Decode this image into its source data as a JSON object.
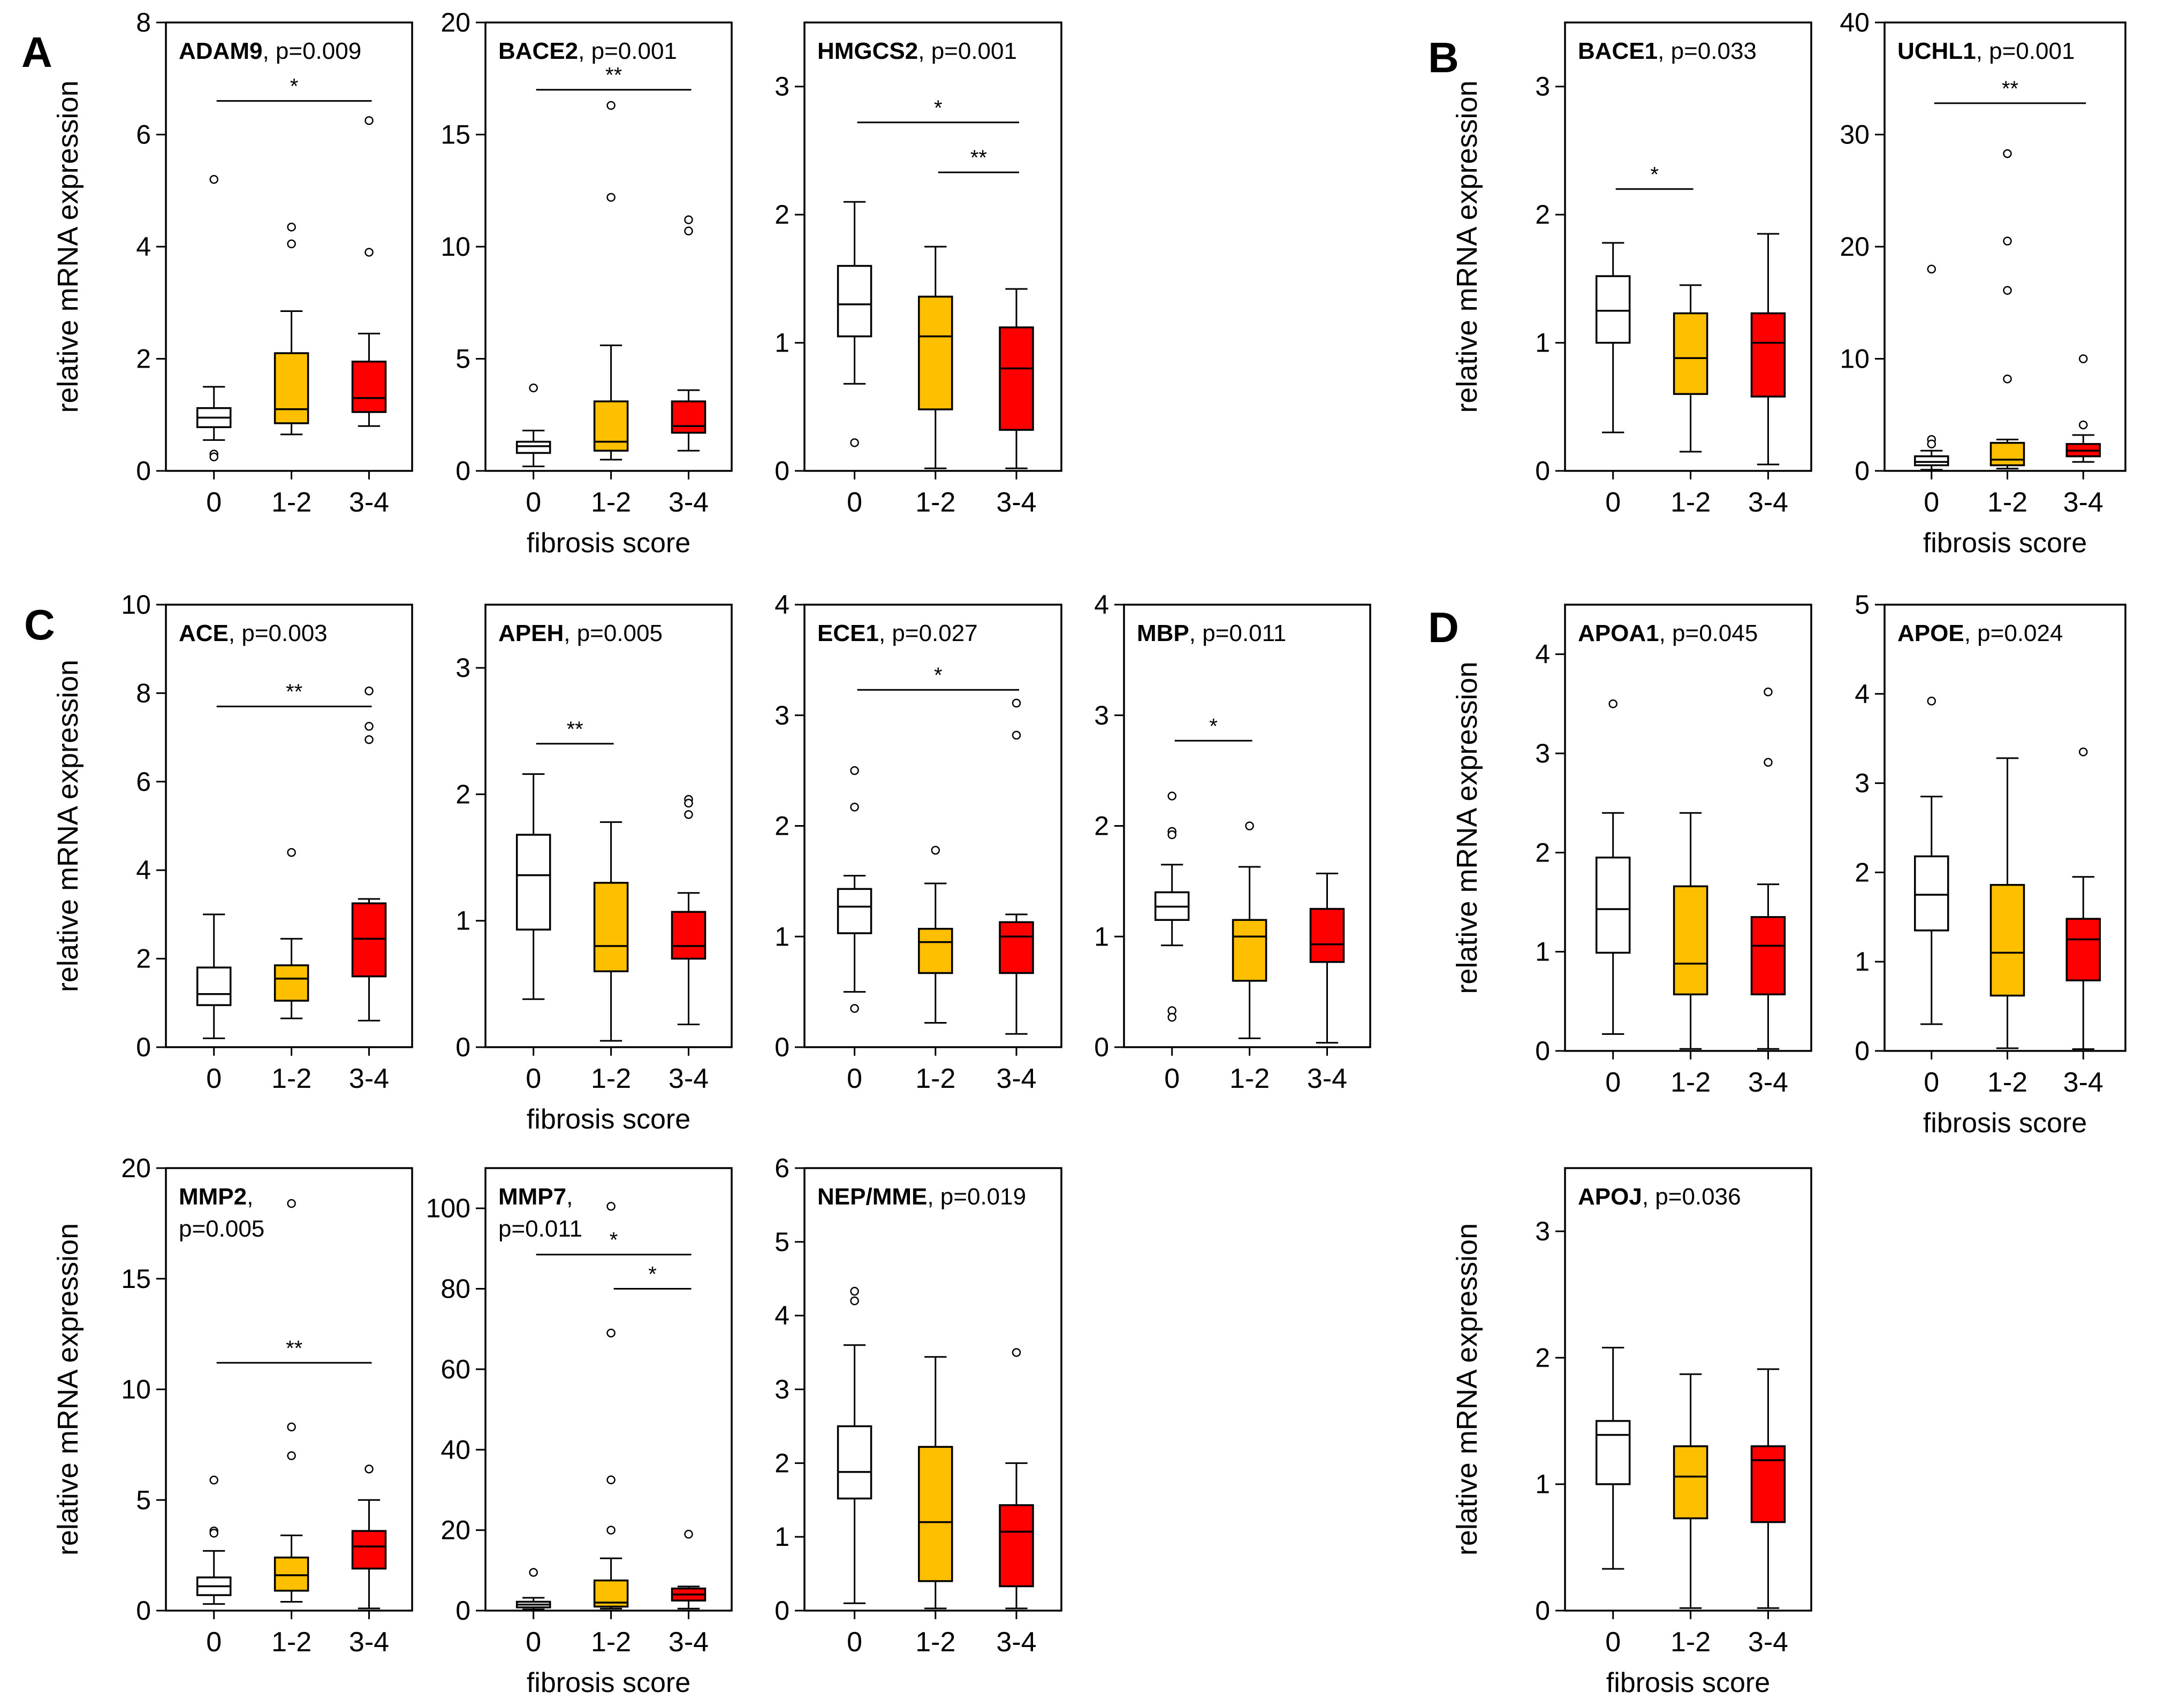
{
  "colors": {
    "score_0": "#ffffff",
    "score_1_2": "#fdbf00",
    "score_3_4": "#ff0000"
  },
  "x_categories": [
    "0",
    "1-2",
    "3-4"
  ],
  "y_axis_label": "relative mRNA expression",
  "x_axis_label": "fibrosis score",
  "panel_labels": [
    "A",
    "B",
    "C",
    "D"
  ],
  "chart_data": [
    {
      "id": "ADAM9",
      "type": "boxplot",
      "panel": "A",
      "gene": "ADAM9",
      "pvalue": ", p=0.009",
      "title_line2": "",
      "ylim": [
        0,
        8
      ],
      "yticks": [
        "0",
        "2",
        "4",
        "6",
        "8"
      ],
      "show_ylabel": true,
      "show_xlabel": false,
      "boxes": [
        {
          "category": "0",
          "whisker_low": 0.55,
          "q1": 0.78,
          "median": 0.95,
          "q3": 1.12,
          "whisker_high": 1.5,
          "outliers": [
            5.2,
            0.3,
            0.25
          ]
        },
        {
          "category": "1-2",
          "whisker_low": 0.65,
          "q1": 0.85,
          "median": 1.1,
          "q3": 2.1,
          "whisker_high": 2.85,
          "outliers": [
            4.35,
            4.05
          ]
        },
        {
          "category": "3-4",
          "whisker_low": 0.8,
          "q1": 1.05,
          "median": 1.3,
          "q3": 1.95,
          "whisker_high": 2.45,
          "outliers": [
            6.25,
            3.9
          ]
        }
      ],
      "brackets": [
        {
          "from": 0,
          "to": 2,
          "y": 6.6,
          "label": "*"
        }
      ]
    },
    {
      "id": "BACE2",
      "type": "boxplot",
      "panel": "A",
      "gene": "BACE2",
      "pvalue": ", p=0.001",
      "title_line2": "",
      "ylim": [
        0,
        20
      ],
      "yticks": [
        "0",
        "5",
        "10",
        "15",
        "20"
      ],
      "show_ylabel": false,
      "show_xlabel": true,
      "boxes": [
        {
          "category": "0",
          "whisker_low": 0.2,
          "q1": 0.8,
          "median": 1.1,
          "q3": 1.3,
          "whisker_high": 1.8,
          "outliers": [
            3.7
          ]
        },
        {
          "category": "1-2",
          "whisker_low": 0.5,
          "q1": 0.9,
          "median": 1.3,
          "q3": 3.1,
          "whisker_high": 5.6,
          "outliers": [
            16.3,
            12.2
          ]
        },
        {
          "category": "3-4",
          "whisker_low": 0.9,
          "q1": 1.7,
          "median": 2.0,
          "q3": 3.1,
          "whisker_high": 3.6,
          "outliers": [
            11.2,
            10.7
          ]
        }
      ],
      "brackets": [
        {
          "from": 0,
          "to": 2,
          "y": 17.0,
          "label": "**"
        }
      ]
    },
    {
      "id": "HMGCS2",
      "type": "boxplot",
      "panel": "A",
      "gene": "HMGCS2",
      "pvalue": ", p=0.001",
      "title_line2": "",
      "ylim": [
        0,
        3.5
      ],
      "yticks": [
        "0",
        "1",
        "2",
        "3"
      ],
      "show_ylabel": false,
      "show_xlabel": false,
      "boxes": [
        {
          "category": "0",
          "whisker_low": 0.68,
          "q1": 1.05,
          "median": 1.3,
          "q3": 1.6,
          "whisker_high": 2.1,
          "outliers": [
            0.22
          ]
        },
        {
          "category": "1-2",
          "whisker_low": 0.02,
          "q1": 0.48,
          "median": 1.05,
          "q3": 1.36,
          "whisker_high": 1.75,
          "outliers": []
        },
        {
          "category": "3-4",
          "whisker_low": 0.02,
          "q1": 0.32,
          "median": 0.8,
          "q3": 1.12,
          "whisker_high": 1.42,
          "outliers": []
        }
      ],
      "brackets": [
        {
          "from": 0,
          "to": 2,
          "y": 2.72,
          "label": "*"
        },
        {
          "from": 1,
          "to": 2,
          "y": 2.33,
          "label": "**"
        }
      ]
    },
    {
      "id": "BACE1",
      "type": "boxplot",
      "panel": "B",
      "gene": "BACE1",
      "pvalue": ", p=0.033",
      "title_line2": "",
      "ylim": [
        0,
        3.5
      ],
      "yticks": [
        "0",
        "1",
        "2",
        "3"
      ],
      "show_ylabel": true,
      "show_xlabel": false,
      "boxes": [
        {
          "category": "0",
          "whisker_low": 0.3,
          "q1": 1.0,
          "median": 1.25,
          "q3": 1.52,
          "whisker_high": 1.78,
          "outliers": []
        },
        {
          "category": "1-2",
          "whisker_low": 0.15,
          "q1": 0.6,
          "median": 0.88,
          "q3": 1.23,
          "whisker_high": 1.45,
          "outliers": []
        },
        {
          "category": "3-4",
          "whisker_low": 0.05,
          "q1": 0.58,
          "median": 1.0,
          "q3": 1.23,
          "whisker_high": 1.85,
          "outliers": []
        }
      ],
      "brackets": [
        {
          "from": 0,
          "to": 1,
          "y": 2.2,
          "label": "*"
        }
      ]
    },
    {
      "id": "UCHL1",
      "type": "boxplot",
      "panel": "B",
      "gene": "UCHL1",
      "pvalue": ", p=0.001",
      "title_line2": "",
      "ylim": [
        0,
        40
      ],
      "yticks": [
        "0",
        "10",
        "20",
        "30",
        "40"
      ],
      "show_ylabel": false,
      "show_xlabel": true,
      "boxes": [
        {
          "category": "0",
          "whisker_low": 0.1,
          "q1": 0.5,
          "median": 0.8,
          "q3": 1.3,
          "whisker_high": 1.8,
          "outliers": [
            18.0,
            2.8,
            2.4
          ]
        },
        {
          "category": "1-2",
          "whisker_low": 0.2,
          "q1": 0.5,
          "median": 1.0,
          "q3": 2.5,
          "whisker_high": 2.8,
          "outliers": [
            28.3,
            20.5,
            16.1,
            8.2
          ]
        },
        {
          "category": "3-4",
          "whisker_low": 0.8,
          "q1": 1.3,
          "median": 1.8,
          "q3": 2.4,
          "whisker_high": 3.2,
          "outliers": [
            10.0,
            4.1
          ]
        }
      ],
      "brackets": [
        {
          "from": 0,
          "to": 2,
          "y": 32.8,
          "label": "**"
        }
      ]
    },
    {
      "id": "ACE",
      "type": "boxplot",
      "panel": "C",
      "gene": "ACE",
      "pvalue": ", p=0.003",
      "title_line2": "",
      "ylim": [
        0,
        10
      ],
      "yticks": [
        "0",
        "2",
        "4",
        "6",
        "8",
        "10"
      ],
      "show_ylabel": true,
      "show_xlabel": false,
      "boxes": [
        {
          "category": "0",
          "whisker_low": 0.2,
          "q1": 0.95,
          "median": 1.2,
          "q3": 1.8,
          "whisker_high": 3.0,
          "outliers": []
        },
        {
          "category": "1-2",
          "whisker_low": 0.65,
          "q1": 1.05,
          "median": 1.55,
          "q3": 1.85,
          "whisker_high": 2.45,
          "outliers": [
            4.4
          ]
        },
        {
          "category": "3-4",
          "whisker_low": 0.6,
          "q1": 1.6,
          "median": 2.45,
          "q3": 3.25,
          "whisker_high": 3.35,
          "outliers": [
            8.05,
            7.25,
            6.95
          ]
        }
      ],
      "brackets": [
        {
          "from": 0,
          "to": 2,
          "y": 7.7,
          "label": "**"
        }
      ]
    },
    {
      "id": "APEH",
      "type": "boxplot",
      "panel": "C",
      "gene": "APEH",
      "pvalue": ", p=0.005",
      "title_line2": "",
      "ylim": [
        0,
        3.5
      ],
      "yticks": [
        "0",
        "1",
        "2",
        "3"
      ],
      "show_ylabel": false,
      "show_xlabel": true,
      "boxes": [
        {
          "category": "0",
          "whisker_low": 0.38,
          "q1": 0.93,
          "median": 1.36,
          "q3": 1.68,
          "whisker_high": 2.16,
          "outliers": []
        },
        {
          "category": "1-2",
          "whisker_low": 0.05,
          "q1": 0.6,
          "median": 0.8,
          "q3": 1.3,
          "whisker_high": 1.78,
          "outliers": []
        },
        {
          "category": "3-4",
          "whisker_low": 0.18,
          "q1": 0.7,
          "median": 0.8,
          "q3": 1.07,
          "whisker_high": 1.22,
          "outliers": [
            1.96,
            1.93,
            1.84
          ]
        }
      ],
      "brackets": [
        {
          "from": 0,
          "to": 1,
          "y": 2.4,
          "label": "**"
        }
      ]
    },
    {
      "id": "ECE1",
      "type": "boxplot",
      "panel": "C",
      "gene": "ECE1",
      "pvalue": ", p=0.027",
      "title_line2": "",
      "ylim": [
        0,
        4
      ],
      "yticks": [
        "0",
        "1",
        "2",
        "3",
        "4"
      ],
      "show_ylabel": false,
      "show_xlabel": false,
      "boxes": [
        {
          "category": "0",
          "whisker_low": 0.5,
          "q1": 1.03,
          "median": 1.27,
          "q3": 1.43,
          "whisker_high": 1.55,
          "outliers": [
            2.5,
            2.17,
            0.35
          ]
        },
        {
          "category": "1-2",
          "whisker_low": 0.22,
          "q1": 0.67,
          "median": 0.95,
          "q3": 1.07,
          "whisker_high": 1.48,
          "outliers": [
            1.78
          ]
        },
        {
          "category": "3-4",
          "whisker_low": 0.12,
          "q1": 0.67,
          "median": 1.0,
          "q3": 1.13,
          "whisker_high": 1.2,
          "outliers": [
            3.11,
            2.82
          ]
        }
      ],
      "brackets": [
        {
          "from": 0,
          "to": 2,
          "y": 3.23,
          "label": "*"
        }
      ]
    },
    {
      "id": "MBP",
      "type": "boxplot",
      "panel": "C",
      "gene": "MBP",
      "pvalue": ", p=0.011",
      "title_line2": "",
      "ylim": [
        0,
        4
      ],
      "yticks": [
        "0",
        "1",
        "2",
        "3",
        "4"
      ],
      "show_ylabel": false,
      "show_xlabel": false,
      "boxes": [
        {
          "category": "0",
          "whisker_low": 0.92,
          "q1": 1.15,
          "median": 1.27,
          "q3": 1.4,
          "whisker_high": 1.65,
          "outliers": [
            2.27,
            1.95,
            1.92,
            0.33,
            0.27
          ]
        },
        {
          "category": "1-2",
          "whisker_low": 0.08,
          "q1": 0.6,
          "median": 1.0,
          "q3": 1.15,
          "whisker_high": 1.63,
          "outliers": [
            2.0
          ]
        },
        {
          "category": "3-4",
          "whisker_low": 0.04,
          "q1": 0.77,
          "median": 0.93,
          "q3": 1.25,
          "whisker_high": 1.57,
          "outliers": []
        }
      ],
      "brackets": [
        {
          "from": 0,
          "to": 1,
          "y": 2.77,
          "label": "*"
        }
      ]
    },
    {
      "id": "APOA1",
      "type": "boxplot",
      "panel": "D",
      "gene": "APOA1",
      "pvalue": ", p=0.045",
      "title_line2": "",
      "ylim": [
        0,
        4.5
      ],
      "yticks": [
        "0",
        "1",
        "2",
        "3",
        "4"
      ],
      "show_ylabel": true,
      "show_xlabel": false,
      "boxes": [
        {
          "category": "0",
          "whisker_low": 0.17,
          "q1": 0.99,
          "median": 1.43,
          "q3": 1.95,
          "whisker_high": 2.4,
          "outliers": [
            3.5
          ]
        },
        {
          "category": "1-2",
          "whisker_low": 0.02,
          "q1": 0.57,
          "median": 0.88,
          "q3": 1.66,
          "whisker_high": 2.4,
          "outliers": []
        },
        {
          "category": "3-4",
          "whisker_low": 0.02,
          "q1": 0.57,
          "median": 1.06,
          "q3": 1.35,
          "whisker_high": 1.68,
          "outliers": [
            3.62,
            2.91
          ]
        }
      ],
      "brackets": []
    },
    {
      "id": "APOE",
      "type": "boxplot",
      "panel": "D",
      "gene": "APOE",
      "pvalue": ", p=0.024",
      "title_line2": "",
      "ylim": [
        0,
        5
      ],
      "yticks": [
        "0",
        "1",
        "2",
        "3",
        "4",
        "5"
      ],
      "show_ylabel": false,
      "show_xlabel": true,
      "boxes": [
        {
          "category": "0",
          "whisker_low": 0.3,
          "q1": 1.35,
          "median": 1.75,
          "q3": 2.18,
          "whisker_high": 2.85,
          "outliers": [
            3.92
          ]
        },
        {
          "category": "1-2",
          "whisker_low": 0.03,
          "q1": 0.62,
          "median": 1.1,
          "q3": 1.86,
          "whisker_high": 3.28,
          "outliers": []
        },
        {
          "category": "3-4",
          "whisker_low": 0.02,
          "q1": 0.79,
          "median": 1.25,
          "q3": 1.48,
          "whisker_high": 1.95,
          "outliers": [
            3.35
          ]
        }
      ],
      "brackets": []
    },
    {
      "id": "MMP2",
      "type": "boxplot",
      "panel": "C",
      "gene": "MMP2",
      "pvalue": ",",
      "title_line2": "p=0.005",
      "ylim": [
        0,
        20
      ],
      "yticks": [
        "0",
        "5",
        "10",
        "15",
        "20"
      ],
      "show_ylabel": true,
      "show_xlabel": false,
      "boxes": [
        {
          "category": "0",
          "whisker_low": 0.3,
          "q1": 0.7,
          "median": 1.1,
          "q3": 1.5,
          "whisker_high": 2.7,
          "outliers": [
            5.9,
            3.6,
            3.5
          ]
        },
        {
          "category": "1-2",
          "whisker_low": 0.4,
          "q1": 0.9,
          "median": 1.6,
          "q3": 2.4,
          "whisker_high": 3.4,
          "outliers": [
            18.4,
            8.3,
            7.0
          ]
        },
        {
          "category": "3-4",
          "whisker_low": 0.1,
          "q1": 1.9,
          "median": 2.9,
          "q3": 3.6,
          "whisker_high": 5.0,
          "outliers": [
            6.4
          ]
        }
      ],
      "brackets": [
        {
          "from": 0,
          "to": 2,
          "y": 11.2,
          "label": "**"
        }
      ]
    },
    {
      "id": "MMP7",
      "type": "boxplot",
      "panel": "C",
      "gene": "MMP7",
      "pvalue": ",",
      "title_line2": "p=0.011",
      "ylim": [
        0,
        110
      ],
      "yticks": [
        "0",
        "20",
        "40",
        "60",
        "80",
        "100"
      ],
      "show_ylabel": false,
      "show_xlabel": true,
      "boxes": [
        {
          "category": "0",
          "whisker_low": 0.3,
          "q1": 0.8,
          "median": 1.5,
          "q3": 2.2,
          "whisker_high": 3.2,
          "outliers": [
            9.5
          ]
        },
        {
          "category": "1-2",
          "whisker_low": 0.5,
          "q1": 1.0,
          "median": 2.0,
          "q3": 7.5,
          "whisker_high": 13.0,
          "outliers": [
            100.5,
            69.0,
            32.5,
            20.0
          ]
        },
        {
          "category": "3-4",
          "whisker_low": 0.5,
          "q1": 2.5,
          "median": 4.0,
          "q3": 5.5,
          "whisker_high": 6.0,
          "outliers": [
            19.0
          ]
        }
      ],
      "brackets": [
        {
          "from": 0,
          "to": 2,
          "y": 88.5,
          "label": "*"
        },
        {
          "from": 1,
          "to": 2,
          "y": 80.0,
          "label": "*"
        }
      ]
    },
    {
      "id": "NEPMME",
      "type": "boxplot",
      "panel": "C",
      "gene": "NEP/MME",
      "pvalue": ", p=0.019",
      "title_line2": "",
      "ylim": [
        0,
        6
      ],
      "yticks": [
        "0",
        "1",
        "2",
        "3",
        "4",
        "5",
        "6"
      ],
      "show_ylabel": false,
      "show_xlabel": false,
      "boxes": [
        {
          "category": "0",
          "whisker_low": 0.1,
          "q1": 1.52,
          "median": 1.88,
          "q3": 2.5,
          "whisker_high": 3.6,
          "outliers": [
            4.33,
            4.2
          ]
        },
        {
          "category": "1-2",
          "whisker_low": 0.03,
          "q1": 0.4,
          "median": 1.2,
          "q3": 2.22,
          "whisker_high": 3.44,
          "outliers": []
        },
        {
          "category": "3-4",
          "whisker_low": 0.03,
          "q1": 0.33,
          "median": 1.07,
          "q3": 1.43,
          "whisker_high": 2.0,
          "outliers": [
            3.5
          ]
        }
      ],
      "brackets": []
    },
    {
      "id": "APOJ",
      "type": "boxplot",
      "panel": "D",
      "gene": "APOJ",
      "pvalue": ", p=0.036",
      "title_line2": "",
      "ylim": [
        0,
        3.5
      ],
      "yticks": [
        "0",
        "1",
        "2",
        "3"
      ],
      "show_ylabel": true,
      "show_xlabel": true,
      "boxes": [
        {
          "category": "0",
          "whisker_low": 0.33,
          "q1": 1.0,
          "median": 1.39,
          "q3": 1.5,
          "whisker_high": 2.08,
          "outliers": []
        },
        {
          "category": "1-2",
          "whisker_low": 0.02,
          "q1": 0.73,
          "median": 1.06,
          "q3": 1.3,
          "whisker_high": 1.87,
          "outliers": []
        },
        {
          "category": "3-4",
          "whisker_low": 0.02,
          "q1": 0.7,
          "median": 1.19,
          "q3": 1.3,
          "whisker_high": 1.91,
          "outliers": []
        }
      ],
      "brackets": []
    }
  ]
}
